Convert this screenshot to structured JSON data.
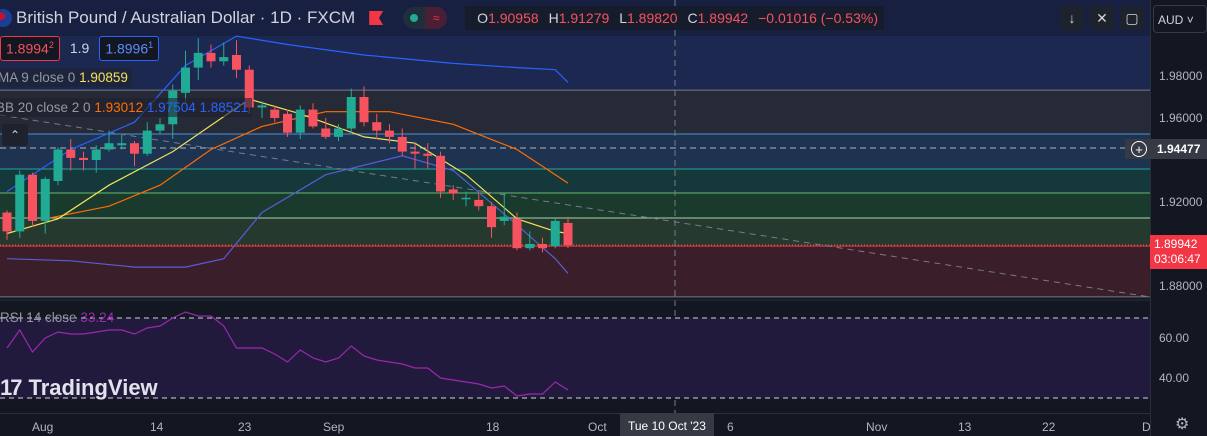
{
  "header": {
    "title": "British Pound / Australian Dollar · 1D · FXCM",
    "ohlc": {
      "o_label": "O",
      "o": "1.90958",
      "h_label": "H",
      "h": "1.91279",
      "l_label": "L",
      "l": "1.89820",
      "c_label": "C",
      "c": "1.89942",
      "change": "−0.01016 (−0.53%)"
    },
    "status_icon_market": "dot-icon",
    "status_icon_delay": "≈"
  },
  "quote": {
    "sell": "1.8994",
    "sell_sup": "2",
    "spread": "1.9",
    "buy": "1.8996",
    "buy_sup": "1"
  },
  "indicators": {
    "ma": {
      "label": "MA 9 close 0",
      "value": "1.90859"
    },
    "bb": {
      "label": "BB 20 close 2 0",
      "basis": "1.93012",
      "upper": "1.97504",
      "lower": "1.88521"
    },
    "rsi": {
      "label": "RSI 14 close",
      "value": "33.24"
    }
  },
  "toolbar": {
    "down": "↓",
    "collapse": "✕",
    "fullscreen": "▢",
    "currency": "AUD"
  },
  "price_axis": {
    "labels": [
      {
        "t": "1.98000",
        "p": 1.98
      },
      {
        "t": "1.96000",
        "p": 1.96
      },
      {
        "t": "1.92000",
        "p": 1.92
      },
      {
        "t": "1.88000",
        "p": 1.88
      }
    ],
    "rsi_labels": [
      {
        "t": "60.00",
        "r": 60
      },
      {
        "t": "40.00",
        "r": 40
      }
    ],
    "current_price": "1.89942",
    "countdown": "03:06:47",
    "crosshair_price": "1.94477"
  },
  "time_axis": {
    "labels": [
      "Aug",
      "14",
      "23",
      "Sep",
      "18",
      "Oct",
      "6",
      "Nov",
      "13",
      "22",
      "D"
    ],
    "highlight": "Tue 10 Oct '23"
  },
  "brand": "TradingView",
  "colors": {
    "up": "#22ab94",
    "down": "#f7525f",
    "bb_upper": "#2962ff",
    "bb_basis": "#ff6d00",
    "bb_lower": "#2962ff",
    "ma": "#f2e25c",
    "rsi": "#9c27b0"
  },
  "chart_data": {
    "type": "candlestick",
    "price_range": [
      1.87,
      2.0
    ],
    "candles": [
      [
        1.915,
        1.916,
        1.902,
        1.906
      ],
      [
        1.906,
        1.935,
        1.903,
        1.933
      ],
      [
        1.933,
        1.934,
        1.908,
        1.911
      ],
      [
        1.911,
        1.932,
        1.905,
        1.931
      ],
      [
        1.93,
        1.946,
        1.928,
        1.945
      ],
      [
        1.945,
        1.95,
        1.935,
        1.941
      ],
      [
        1.941,
        1.944,
        1.935,
        1.94
      ],
      [
        1.94,
        1.947,
        1.934,
        1.945
      ],
      [
        1.945,
        1.954,
        1.944,
        1.948
      ],
      [
        1.947,
        1.952,
        1.945,
        1.948
      ],
      [
        1.948,
        1.949,
        1.937,
        1.943
      ],
      [
        1.943,
        1.958,
        1.942,
        1.954
      ],
      [
        1.954,
        1.96,
        1.952,
        1.957
      ],
      [
        1.957,
        1.976,
        1.95,
        1.973
      ],
      [
        1.972,
        1.992,
        1.968,
        1.984
      ],
      [
        1.984,
        1.998,
        1.978,
        1.991
      ],
      [
        1.991,
        1.995,
        1.984,
        1.987
      ],
      [
        1.987,
        1.996,
        1.985,
        1.989
      ],
      [
        1.99,
        1.997,
        1.979,
        1.983
      ],
      [
        1.983,
        1.985,
        1.962,
        1.965
      ],
      [
        1.965,
        1.968,
        1.96,
        1.966
      ],
      [
        1.964,
        1.966,
        1.958,
        1.96
      ],
      [
        1.962,
        1.964,
        1.951,
        1.953
      ],
      [
        1.953,
        1.966,
        1.95,
        1.964
      ],
      [
        1.964,
        1.967,
        1.955,
        1.956
      ],
      [
        1.955,
        1.96,
        1.95,
        1.951
      ],
      [
        1.951,
        1.957,
        1.949,
        1.955
      ],
      [
        1.955,
        1.974,
        1.953,
        1.97
      ],
      [
        1.97,
        1.975,
        1.956,
        1.958
      ],
      [
        1.958,
        1.962,
        1.95,
        1.954
      ],
      [
        1.954,
        1.957,
        1.948,
        1.951
      ],
      [
        1.951,
        1.955,
        1.942,
        1.944
      ],
      [
        1.944,
        1.948,
        1.936,
        1.943
      ],
      [
        1.943,
        1.948,
        1.936,
        1.942
      ],
      [
        1.942,
        1.944,
        1.922,
        1.925
      ],
      [
        1.926,
        1.928,
        1.921,
        1.924
      ],
      [
        1.922,
        1.925,
        1.918,
        1.922
      ],
      [
        1.921,
        1.924,
        1.916,
        1.918
      ],
      [
        1.918,
        1.92,
        1.903,
        1.908
      ],
      [
        1.911,
        1.924,
        1.909,
        1.913
      ],
      [
        1.912,
        1.915,
        1.897,
        1.898
      ],
      [
        1.898,
        1.906,
        1.897,
        1.9
      ],
      [
        1.9,
        1.903,
        1.896,
        1.898
      ],
      [
        1.899,
        1.912,
        1.898,
        1.911
      ],
      [
        1.91,
        1.913,
        1.898,
        1.8994
      ]
    ],
    "bb_upper": [
      [
        0,
        1.925
      ],
      [
        5,
        1.945
      ],
      [
        10,
        1.958
      ],
      [
        14,
        1.985
      ],
      [
        18,
        1.999
      ],
      [
        22,
        1.995
      ],
      [
        28,
        1.99
      ],
      [
        35,
        1.986
      ],
      [
        40,
        1.984
      ],
      [
        43,
        1.983
      ],
      [
        44,
        1.977
      ]
    ],
    "bb_basis": [
      [
        3,
        1.912
      ],
      [
        8,
        1.918
      ],
      [
        12,
        1.928
      ],
      [
        16,
        1.945
      ],
      [
        20,
        1.956
      ],
      [
        25,
        1.963
      ],
      [
        30,
        1.963
      ],
      [
        35,
        1.957
      ],
      [
        40,
        1.945
      ],
      [
        44,
        1.929
      ]
    ],
    "bb_lower": [
      [
        0,
        1.893
      ],
      [
        5,
        1.892
      ],
      [
        10,
        1.889
      ],
      [
        14,
        1.889
      ],
      [
        17,
        1.893
      ],
      [
        20,
        1.915
      ],
      [
        25,
        1.933
      ],
      [
        31,
        1.942
      ],
      [
        35,
        1.935
      ],
      [
        40,
        1.909
      ],
      [
        43,
        1.893
      ],
      [
        44,
        1.886
      ]
    ],
    "ma9": [
      [
        0,
        1.905
      ],
      [
        4,
        1.912
      ],
      [
        8,
        1.928
      ],
      [
        13,
        1.944
      ],
      [
        19,
        1.969
      ],
      [
        23,
        1.962
      ],
      [
        28,
        1.951
      ],
      [
        32,
        1.948
      ],
      [
        36,
        1.933
      ],
      [
        40,
        1.912
      ],
      [
        43,
        1.906
      ],
      [
        44,
        1.905
      ]
    ],
    "rsi": [
      55,
      64,
      53,
      60,
      63,
      62,
      62,
      63,
      64,
      64,
      62,
      65,
      66,
      70,
      73,
      71,
      71,
      66,
      55,
      55,
      55,
      52,
      48,
      54,
      50,
      48,
      50,
      56,
      51,
      49,
      48,
      47,
      45,
      45,
      40,
      39,
      38,
      37,
      35,
      36,
      31,
      32,
      32,
      38,
      34
    ],
    "levels": [
      1.9733,
      1.9524,
      1.9357,
      1.9243,
      1.9124,
      1.899,
      1.8748
    ],
    "rsi_bands": [
      70,
      30
    ]
  }
}
